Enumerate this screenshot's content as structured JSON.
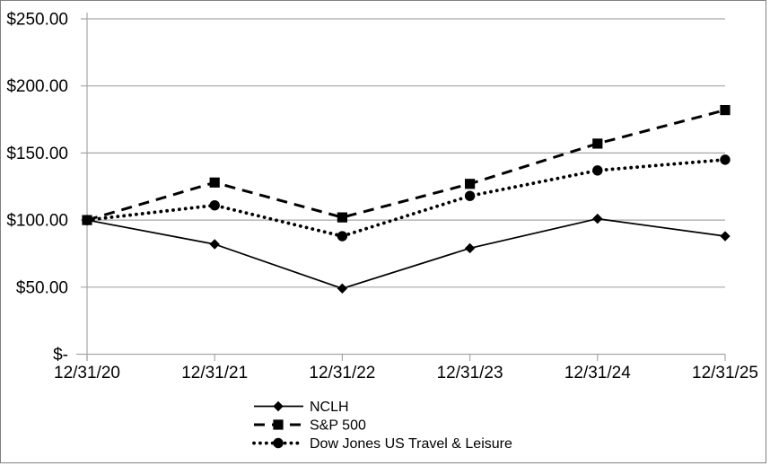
{
  "chart_data": {
    "type": "line",
    "title": "",
    "categories": [
      "12/31/20",
      "12/31/21",
      "12/31/22",
      "12/31/23",
      "12/31/24",
      "12/31/25"
    ],
    "series": [
      {
        "name": "NCLH",
        "marker": "diamond",
        "line_style": "solid",
        "values": [
          100,
          82,
          49,
          79,
          101,
          88
        ]
      },
      {
        "name": "S&P 500",
        "marker": "square",
        "line_style": "dashed",
        "values": [
          100,
          128,
          102,
          127,
          157,
          182
        ]
      },
      {
        "name": "Dow Jones US Travel & Leisure",
        "marker": "circle",
        "line_style": "dotted",
        "values": [
          100,
          111,
          88,
          118,
          137,
          145
        ]
      }
    ],
    "y_axis": {
      "min": 0,
      "max": 250,
      "step": 50,
      "tick_labels": [
        "$-",
        "$50.00",
        "$100.00",
        "$150.00",
        "$200.00",
        "$250.00"
      ]
    },
    "x_axis": {
      "tick_labels": [
        "12/31/20",
        "12/31/21",
        "12/31/22",
        "12/31/23",
        "12/31/24",
        "12/31/25"
      ]
    },
    "grid": true,
    "legend": {
      "position": "bottom",
      "entries": [
        "NCLH",
        "S&P 500",
        "Dow Jones US Travel & Leisure"
      ]
    },
    "colors": {
      "series": "#000000",
      "gridline": "#a6a6a6",
      "axis": "#a6a6a6",
      "text": "#000000",
      "border": "#808080",
      "background": "#ffffff"
    }
  }
}
